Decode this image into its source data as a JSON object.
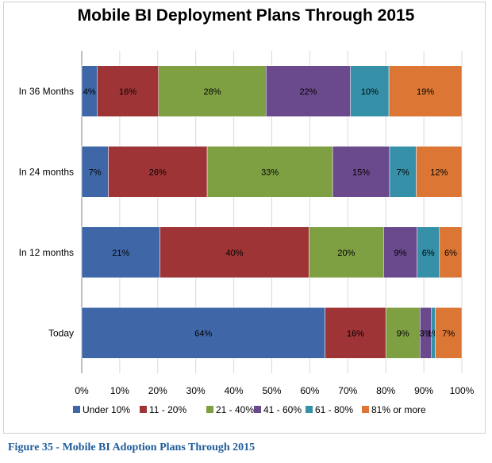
{
  "chart_data": {
    "type": "bar",
    "orientation": "horizontal",
    "stacked": "percent",
    "title": "Mobile BI Deployment Plans Through 2015",
    "categories": [
      "In 36 Months",
      "In 24 months",
      "In 12 months",
      "Today"
    ],
    "series": [
      {
        "name": "Under 10%",
        "color": "#3f67a8",
        "values": [
          4,
          7,
          21,
          64
        ]
      },
      {
        "name": "11 - 20%",
        "color": "#9e3436",
        "values": [
          16,
          26,
          40,
          16
        ]
      },
      {
        "name": "21 - 40%",
        "color": "#7ea043",
        "values": [
          28,
          33,
          20,
          9
        ]
      },
      {
        "name": "41 - 60%",
        "color": "#6a4a8c",
        "values": [
          22,
          15,
          9,
          3
        ]
      },
      {
        "name": "61 - 80%",
        "color": "#3590a8",
        "values": [
          10,
          7,
          6,
          1
        ]
      },
      {
        "name": "81% or more",
        "color": "#db7634",
        "values": [
          19,
          12,
          6,
          7
        ]
      }
    ],
    "xticks": [
      "0%",
      "10%",
      "20%",
      "30%",
      "40%",
      "50%",
      "60%",
      "70%",
      "80%",
      "90%",
      "100%"
    ],
    "xlim": [
      0,
      100
    ],
    "grid": "vertical",
    "legend_position": "bottom",
    "data_labels": true
  },
  "caption": "Figure 35 - Mobile BI Adoption Plans Through 2015"
}
